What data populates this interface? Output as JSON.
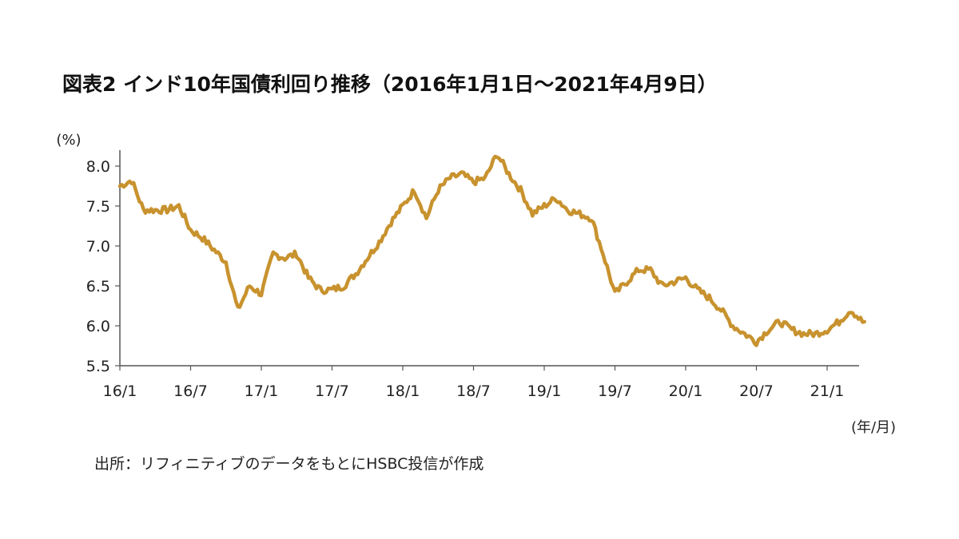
{
  "title": "図表2 インド10年国債利回り推移（2016年1月1日～2021年4月9日）",
  "source": "出所：リフィニティブのデータをもとにHSBC投信が作成",
  "chart_data": {
    "type": "line",
    "title": "図表2 インド10年国債利回り推移（2016年1月1日～2021年4月9日）",
    "ylabel": "(%)",
    "xlabel": "(年/月)",
    "ylim": [
      5.5,
      8.2
    ],
    "yticks": [
      "8.0",
      "7.5",
      "7.0",
      "6.5",
      "6.0",
      "5.5"
    ],
    "xticks": [
      "16/1",
      "16/7",
      "17/1",
      "17/7",
      "18/1",
      "18/7",
      "19/1",
      "19/7",
      "20/1",
      "20/7",
      "21/1"
    ],
    "grid": false,
    "color": "#C8922E",
    "series": [
      {
        "x": [
          "2016-01",
          "2016-02",
          "2016-03",
          "2016-04",
          "2016-05",
          "2016-06",
          "2016-07",
          "2016-08",
          "2016-09",
          "2016-10",
          "2016-11",
          "2016-12",
          "2017-01",
          "2017-02",
          "2017-03",
          "2017-04",
          "2017-05",
          "2017-06",
          "2017-07",
          "2017-08",
          "2017-09",
          "2017-10",
          "2017-11",
          "2017-12",
          "2018-01",
          "2018-02",
          "2018-03",
          "2018-04",
          "2018-05",
          "2018-06",
          "2018-07",
          "2018-08",
          "2018-09",
          "2018-10",
          "2018-11",
          "2018-12",
          "2019-01",
          "2019-02",
          "2019-03",
          "2019-04",
          "2019-05",
          "2019-06",
          "2019-07",
          "2019-08",
          "2019-09",
          "2019-10",
          "2019-11",
          "2019-12",
          "2020-01",
          "2020-02",
          "2020-03",
          "2020-04",
          "2020-05",
          "2020-06",
          "2020-07",
          "2020-08",
          "2020-09",
          "2020-10",
          "2020-11",
          "2020-12",
          "2021-01",
          "2021-02",
          "2021-03",
          "2021-04"
        ],
        "values": [
          7.75,
          7.82,
          7.45,
          7.45,
          7.45,
          7.5,
          7.2,
          7.1,
          6.95,
          6.8,
          6.2,
          6.5,
          6.4,
          6.9,
          6.85,
          6.9,
          6.6,
          6.45,
          6.45,
          6.5,
          6.65,
          6.85,
          7.05,
          7.3,
          7.5,
          7.7,
          7.35,
          7.7,
          7.85,
          7.9,
          7.8,
          7.85,
          8.15,
          7.9,
          7.7,
          7.4,
          7.5,
          7.6,
          7.45,
          7.4,
          7.35,
          6.9,
          6.4,
          6.55,
          6.7,
          6.7,
          6.5,
          6.55,
          6.6,
          6.45,
          6.35,
          6.2,
          6.0,
          5.9,
          5.8,
          5.95,
          6.05,
          5.95,
          5.9,
          5.9,
          5.95,
          6.05,
          6.2,
          6.05
        ]
      }
    ]
  }
}
